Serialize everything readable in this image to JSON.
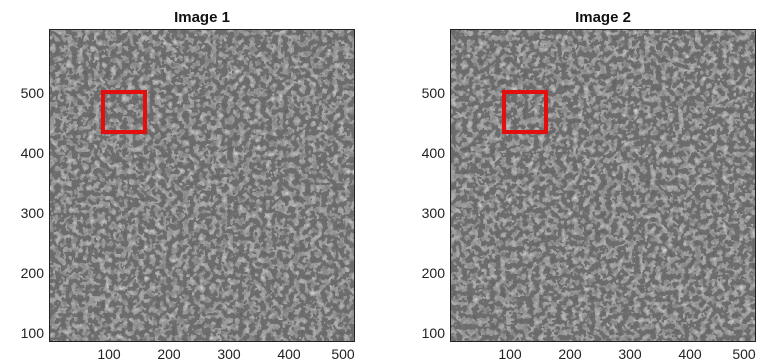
{
  "figure": {
    "panels": [
      {
        "title": "Image 1",
        "x_ticks": [
          "100",
          "200",
          "300",
          "400",
          "500"
        ],
        "y_ticks": [
          "500",
          "400",
          "300",
          "200",
          "100"
        ],
        "roi_color": "#e30f0f"
      },
      {
        "title": "Image 2",
        "x_ticks": [
          "100",
          "200",
          "300",
          "400",
          "500"
        ],
        "y_ticks": [
          "500",
          "400",
          "300",
          "200",
          "100"
        ],
        "roi_color": "#e30f0f"
      }
    ],
    "image_description": "grayscale speckle pattern",
    "colormap": "gray"
  }
}
